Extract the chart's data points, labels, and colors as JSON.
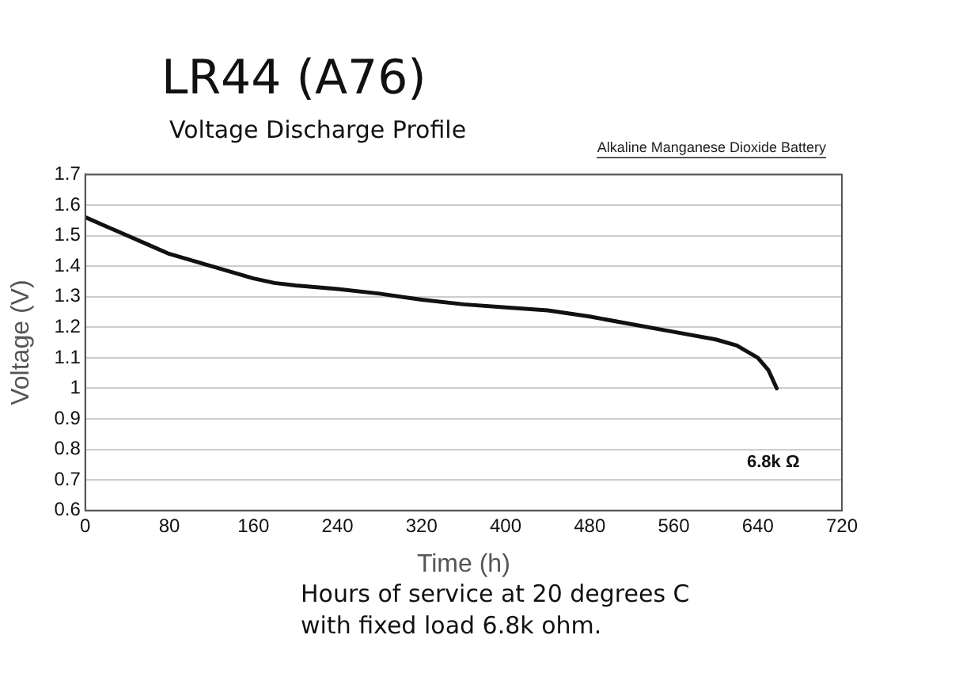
{
  "chart_data": {
    "type": "line",
    "title": "LR44 (A76)",
    "subtitle": "Voltage Discharge Profile",
    "xlabel": "Time (h)",
    "ylabel": "Voltage (V)",
    "xlim": [
      0,
      720
    ],
    "xticks": [
      0,
      80,
      160,
      240,
      320,
      400,
      480,
      560,
      640,
      720
    ],
    "ylim": [
      0.6,
      1.7
    ],
    "yticks": [
      0.6,
      0.7,
      0.8,
      0.9,
      1,
      1.1,
      1.2,
      1.3,
      1.4,
      1.5,
      1.6,
      1.7
    ],
    "grid": "y",
    "legend": false,
    "marker": "none",
    "line_style": "solid",
    "annotations": [
      "Alkaline Manganese Dioxide Battery",
      "6.8k Ω",
      "Hours of service at 20 degrees C\nwith fixed load 6.8k ohm."
    ],
    "series": [
      {
        "color": "#111111",
        "x": [
          0,
          20,
          40,
          60,
          80,
          100,
          120,
          140,
          160,
          180,
          200,
          240,
          280,
          320,
          360,
          400,
          440,
          480,
          520,
          560,
          600,
          620,
          640,
          650,
          658
        ],
        "values": [
          1.56,
          1.53,
          1.5,
          1.47,
          1.44,
          1.42,
          1.4,
          1.38,
          1.36,
          1.345,
          1.337,
          1.325,
          1.31,
          1.29,
          1.275,
          1.265,
          1.255,
          1.235,
          1.21,
          1.185,
          1.16,
          1.14,
          1.1,
          1.06,
          1.0
        ]
      }
    ]
  }
}
